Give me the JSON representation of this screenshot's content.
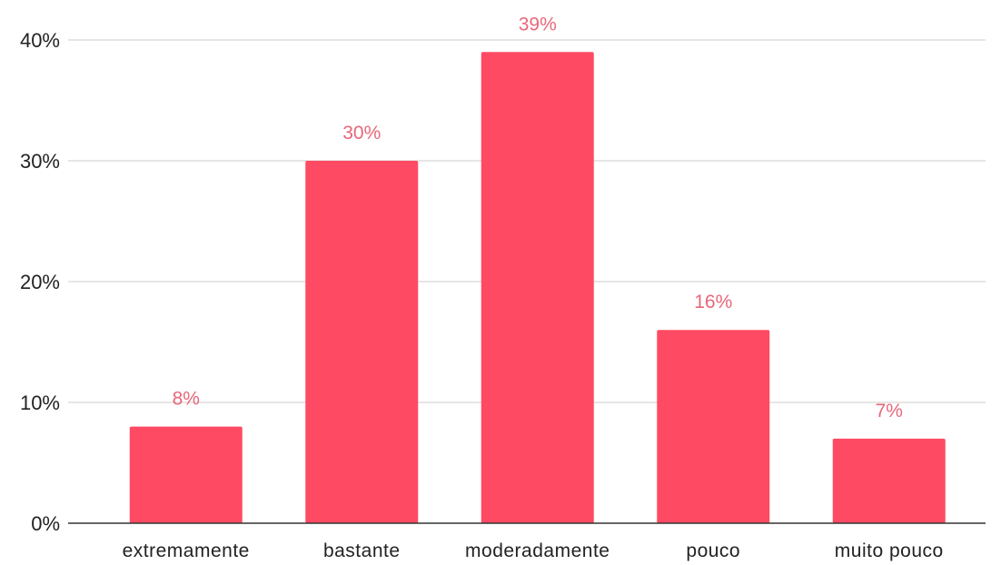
{
  "chart_data": {
    "type": "bar",
    "categories": [
      "extremamente",
      "bastante",
      "moderadamente",
      "pouco",
      "muito pouco"
    ],
    "values": [
      8,
      30,
      39,
      16,
      7
    ],
    "data_labels": [
      "8%",
      "30%",
      "39%",
      "16%",
      "7%"
    ],
    "ylim": [
      0,
      40
    ],
    "y_ticks": [
      0,
      10,
      20,
      30,
      40
    ],
    "y_tick_labels": [
      "0%",
      "10%",
      "20%",
      "30%",
      "40%"
    ],
    "title": "",
    "xlabel": "",
    "ylabel": "",
    "grid": true,
    "legend": "none",
    "bar_color": "#ff4a63",
    "label_color": "#e8677a"
  }
}
